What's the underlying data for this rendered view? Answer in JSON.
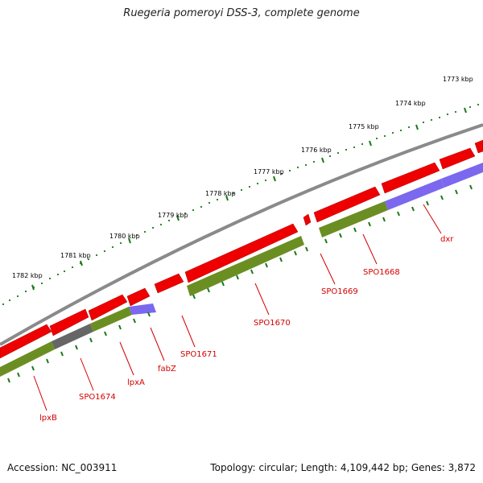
{
  "title": "Ruegeria pomeroyi DSS-3, complete genome",
  "footer": {
    "accession": "Accession: NC_003911",
    "stats": "Topology: circular; Length: 4,109,442 bp; Genes: 3,872"
  },
  "ticks": [
    "1773 kbp",
    "1774 kbp",
    "1775 kbp",
    "1776 kbp",
    "1777 kbp",
    "1778 kbp",
    "1779 kbp",
    "1780 kbp",
    "1781 kbp",
    "1782 kbp"
  ],
  "genes": [
    {
      "name": "lpxB"
    },
    {
      "name": "SPO1674"
    },
    {
      "name": "lpxA"
    },
    {
      "name": "fabZ"
    },
    {
      "name": "SPO1671"
    },
    {
      "name": "SPO1670"
    },
    {
      "name": "SPO1669"
    },
    {
      "name": "SPO1668"
    },
    {
      "name": "dxr"
    }
  ],
  "colors": {
    "backbone": "#8a8a8a",
    "cds": "#ee0000",
    "cog_green": "#6b8e23",
    "cog_purple": "#7b68ee",
    "cog_gray": "#666666",
    "ticks": "#0a7a0a",
    "labels": "#d40000"
  }
}
